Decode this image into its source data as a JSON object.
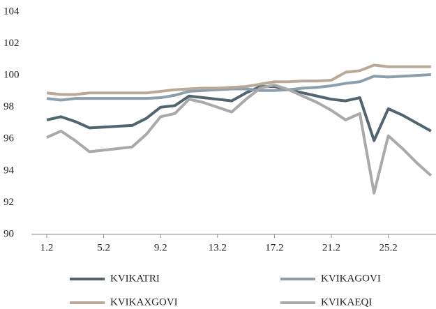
{
  "chart_data": {
    "type": "line",
    "categories": [
      "1.2",
      null,
      null,
      null,
      "5.2",
      null,
      null,
      null,
      "9.2",
      null,
      null,
      null,
      "13.2",
      null,
      null,
      null,
      "17.2",
      null,
      null,
      null,
      "21.2",
      null,
      null,
      null,
      "25.2",
      null,
      null,
      null
    ],
    "series": [
      {
        "name": "KVIKATRI",
        "color": "#50656f",
        "values": [
          97.2,
          97.4,
          97.1,
          96.7,
          96.75,
          96.8,
          96.85,
          97.3,
          98.0,
          98.1,
          98.7,
          98.6,
          98.5,
          98.4,
          98.9,
          99.3,
          99.3,
          99.1,
          98.9,
          98.7,
          98.5,
          98.4,
          98.6,
          95.9,
          97.9,
          97.5,
          97.0,
          96.5
        ]
      },
      {
        "name": "KVIKAGOVI",
        "color": "#8b9eab",
        "values": [
          98.55,
          98.45,
          98.55,
          98.55,
          98.55,
          98.55,
          98.55,
          98.55,
          98.6,
          98.75,
          99.0,
          99.05,
          99.1,
          99.15,
          99.15,
          99.05,
          99.05,
          99.1,
          99.2,
          99.25,
          99.35,
          99.5,
          99.6,
          99.95,
          99.9,
          99.95,
          100.0,
          100.05
        ]
      },
      {
        "name": "KVIKAXGOVI",
        "color": "#b9aa97",
        "values": [
          98.9,
          98.8,
          98.8,
          98.9,
          98.9,
          98.9,
          98.9,
          98.9,
          99.0,
          99.1,
          99.15,
          99.2,
          99.2,
          99.25,
          99.3,
          99.45,
          99.6,
          99.6,
          99.65,
          99.65,
          99.7,
          100.2,
          100.3,
          100.65,
          100.55,
          100.55,
          100.55,
          100.55
        ]
      },
      {
        "name": "KVIKAEQI",
        "color": "#a9a9a9",
        "values": [
          96.1,
          96.5,
          95.9,
          95.2,
          95.3,
          95.4,
          95.5,
          96.3,
          97.4,
          97.6,
          98.5,
          98.3,
          98.0,
          97.7,
          98.5,
          99.2,
          99.4,
          99.1,
          98.7,
          98.3,
          97.8,
          97.2,
          97.6,
          92.6,
          96.2,
          95.4,
          94.5,
          93.7
        ]
      }
    ],
    "ylim": [
      90,
      104
    ],
    "yticks": [
      90,
      92,
      94,
      96,
      98,
      100,
      102,
      104
    ],
    "grid": false,
    "legend": "bottom"
  }
}
